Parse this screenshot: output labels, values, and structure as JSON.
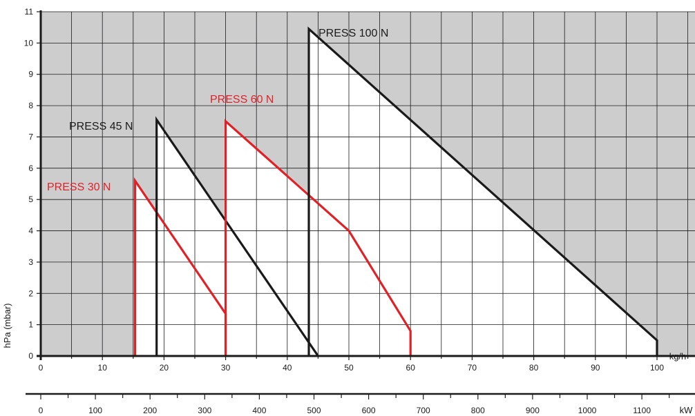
{
  "chart_data": {
    "type": "line",
    "title": "",
    "xlabel": "kg/h",
    "x2label": "kW",
    "ylabel": "hPa (mbar)",
    "xlim": [
      0,
      105
    ],
    "ylim": [
      0,
      11
    ],
    "x2lim": [
      0,
      1180
    ],
    "x_ticks": [
      0,
      10,
      20,
      30,
      40,
      50,
      60,
      70,
      80,
      90,
      100
    ],
    "x_minor_step": 5,
    "y_ticks": [
      0,
      1,
      2,
      3,
      4,
      5,
      6,
      7,
      8,
      9,
      10,
      11
    ],
    "x2_ticks": [
      0,
      100,
      200,
      300,
      400,
      500,
      600,
      700,
      800,
      900,
      1000,
      1100
    ],
    "x2_minor_step": 50,
    "grid": true,
    "colors": {
      "background": "#cdcdce",
      "envelope_fill": "#ffffff",
      "grid": "#1a1a1a",
      "black_series": "#1a1a1a",
      "red_series": "#e02128"
    },
    "series": [
      {
        "name": "PRESS 30 N",
        "color": "#e02128",
        "points": [
          [
            15.3,
            0
          ],
          [
            15.3,
            5.6
          ],
          [
            30,
            1.35
          ],
          [
            30,
            0
          ]
        ]
      },
      {
        "name": "PRESS 45 N",
        "color": "#1a1a1a",
        "points": [
          [
            18.8,
            0
          ],
          [
            18.8,
            7.55
          ],
          [
            45,
            0
          ]
        ]
      },
      {
        "name": "PRESS 60 N",
        "color": "#e02128",
        "points": [
          [
            30,
            0
          ],
          [
            30,
            7.5
          ],
          [
            50,
            4
          ],
          [
            60,
            0.8
          ],
          [
            60,
            0
          ]
        ]
      },
      {
        "name": "PRESS 100 N",
        "color": "#1a1a1a",
        "points": [
          [
            43.5,
            0
          ],
          [
            43.5,
            10.45
          ],
          [
            100,
            0.5
          ],
          [
            100,
            0
          ]
        ]
      }
    ],
    "series_labels": [
      "PRESS 30 N",
      "PRESS 45 N",
      "PRESS 60 N",
      "PRESS 100 N"
    ]
  }
}
